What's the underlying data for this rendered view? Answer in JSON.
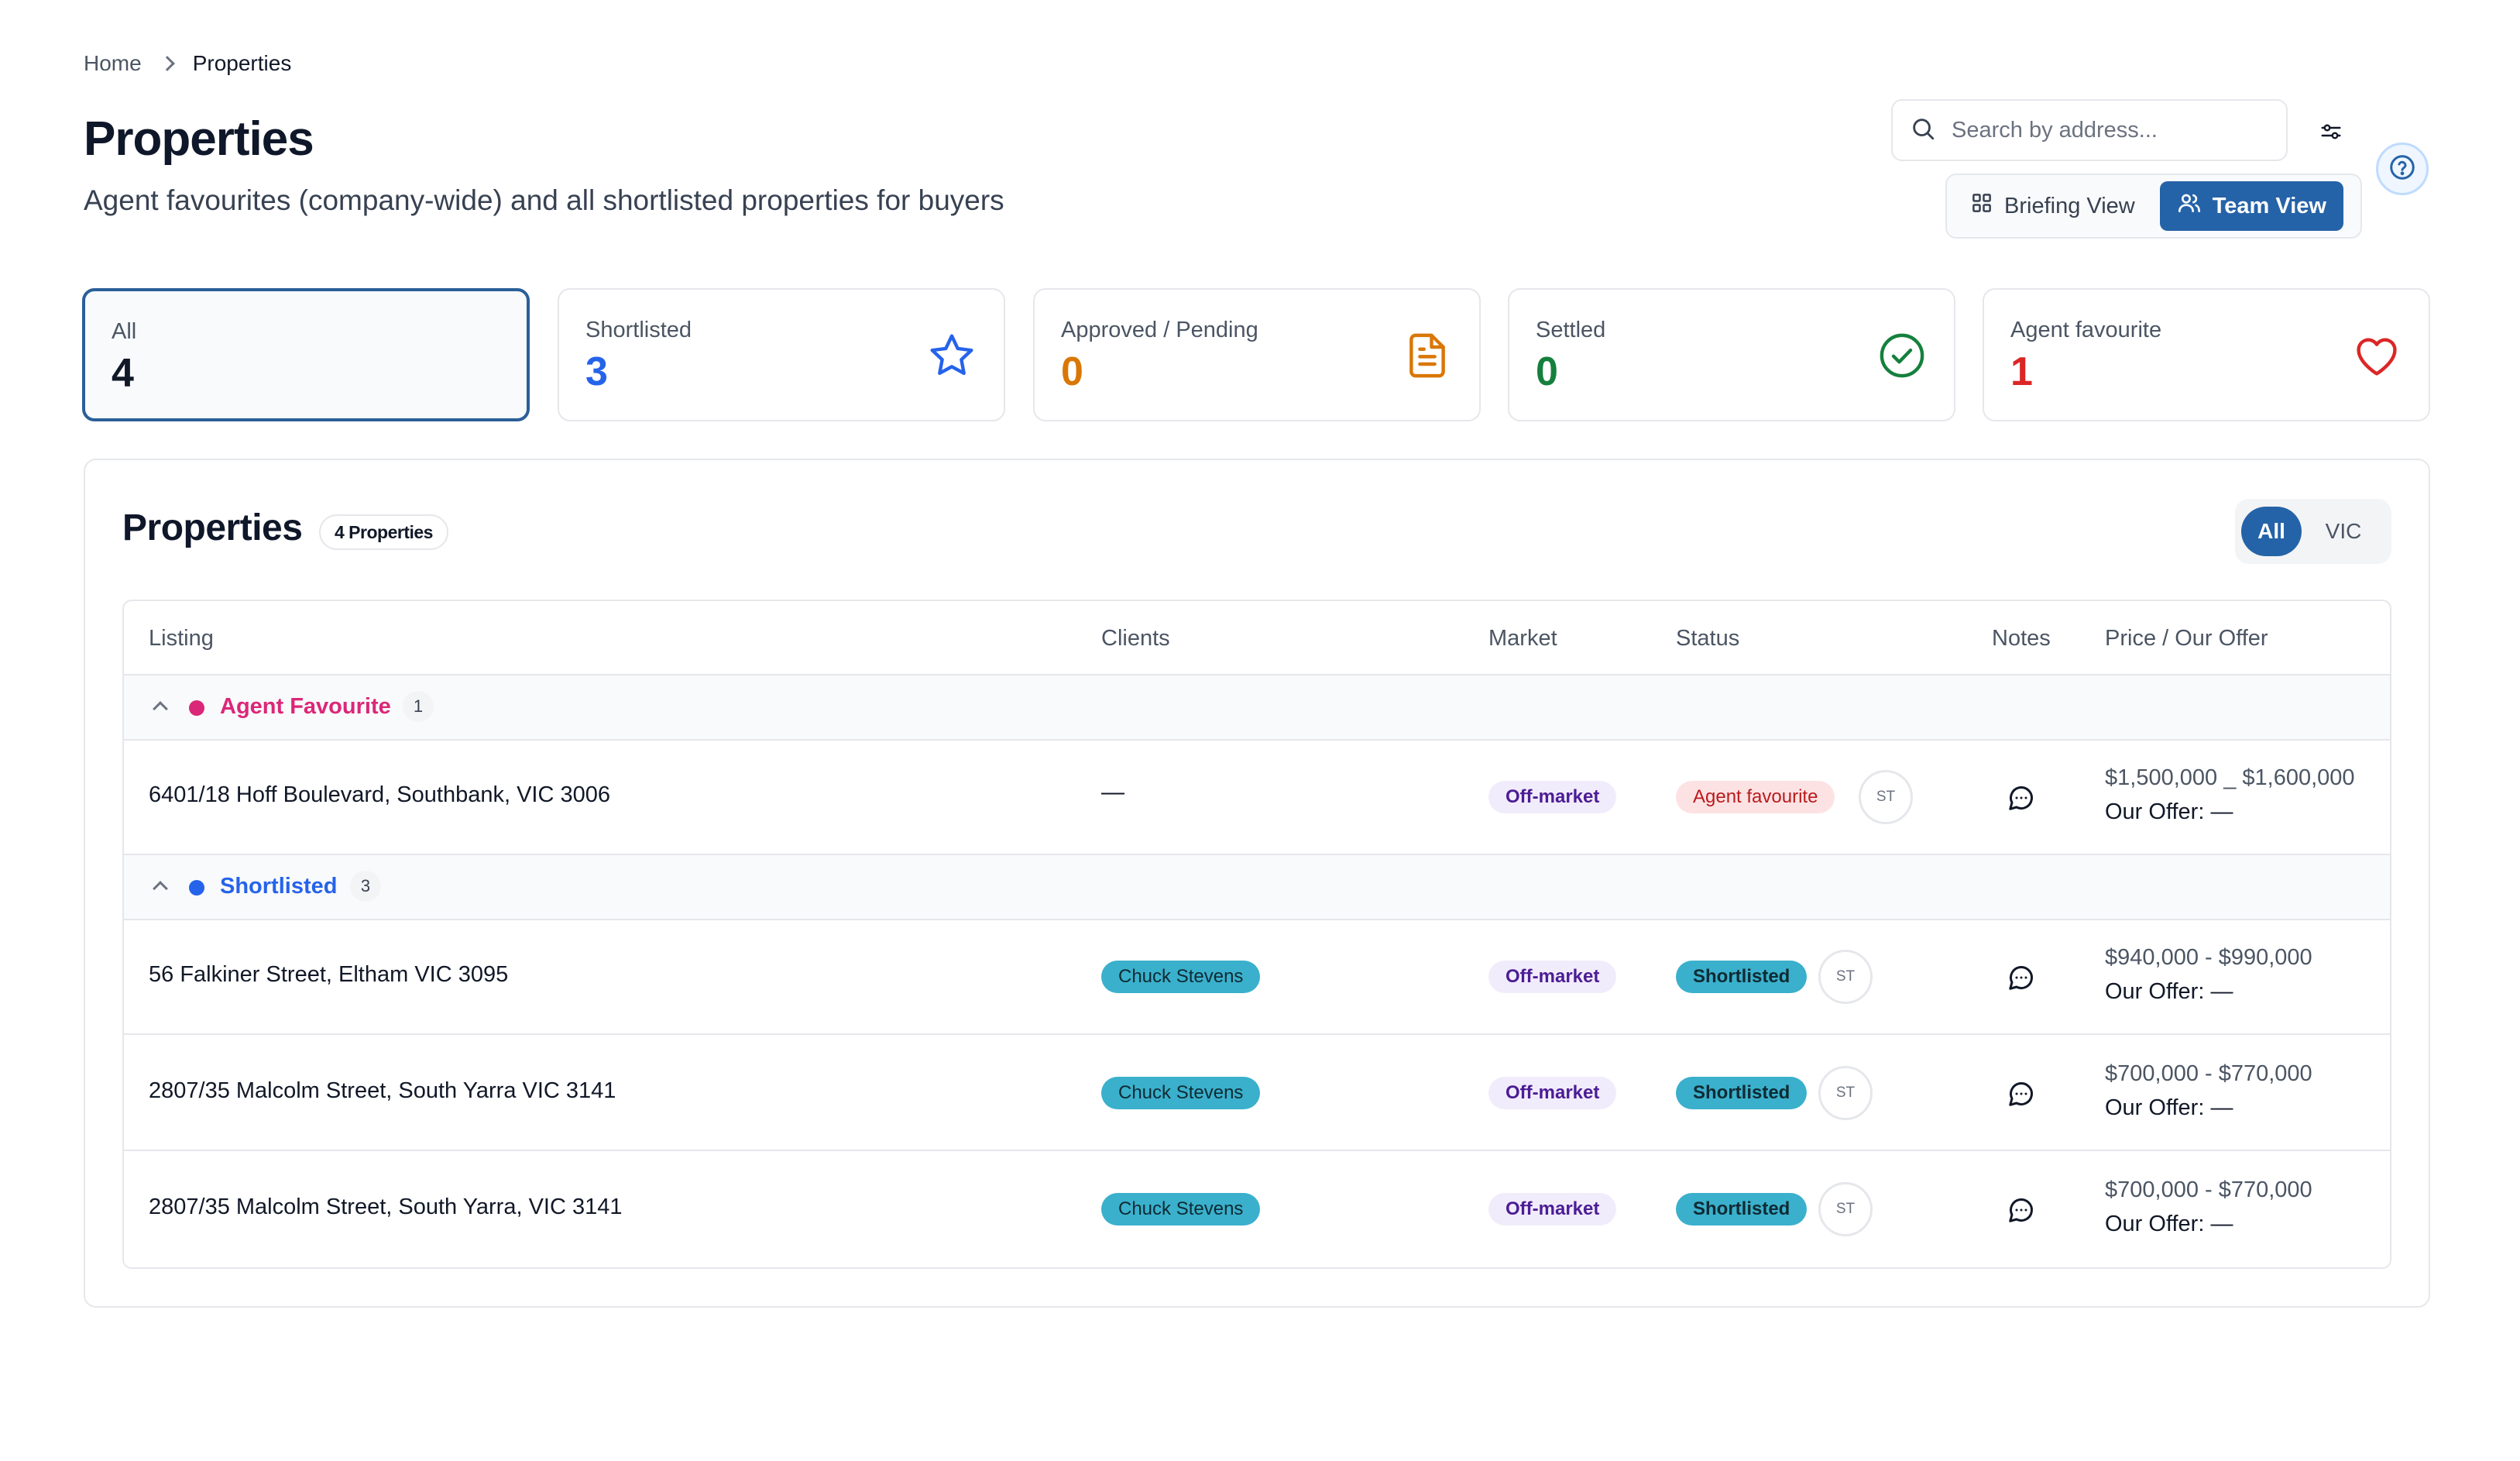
{
  "breadcrumb": {
    "home": "Home",
    "current": "Properties"
  },
  "header": {
    "title": "Properties",
    "subtitle": "Agent favourites (company-wide) and all shortlisted properties for buyers"
  },
  "search": {
    "placeholder": "Search by address...",
    "value": ""
  },
  "view_toggle": {
    "briefing": "Briefing View",
    "team": "Team View",
    "active": "team"
  },
  "stats": [
    {
      "label": "All",
      "value": "4",
      "color": "#111827",
      "icon": "none",
      "selected": true
    },
    {
      "label": "Shortlisted",
      "value": "3",
      "color": "#2563eb",
      "icon": "star-icon"
    },
    {
      "label": "Approved / Pending",
      "value": "0",
      "color": "#d97706",
      "icon": "document-icon"
    },
    {
      "label": "Settled",
      "value": "0",
      "color": "#15803d",
      "icon": "check-circle-icon"
    },
    {
      "label": "Agent favourite",
      "value": "1",
      "color": "#dc2626",
      "icon": "heart-icon"
    }
  ],
  "panel": {
    "title": "Properties",
    "count_badge": "4 Properties",
    "region_filter": {
      "options": [
        "All",
        "VIC"
      ],
      "active": "All"
    }
  },
  "table": {
    "columns": [
      "Listing",
      "Clients",
      "Market",
      "Status",
      "Notes",
      "Price / Our Offer"
    ],
    "groups": [
      {
        "label": "Agent Favourite",
        "count": "1",
        "color": "#db2777",
        "rows": [
          {
            "listing": "6401/18 Hoff Boulevard, Southbank, VIC 3006",
            "client": "—",
            "market": "Off-market",
            "status": "Agent favourite",
            "initials": "ST",
            "price": "$1,500,000 _ $1,600,000",
            "offer": "Our Offer: —"
          }
        ]
      },
      {
        "label": "Shortlisted",
        "count": "3",
        "color": "#2563eb",
        "rows": [
          {
            "listing": "56 Falkiner Street, Eltham VIC 3095",
            "client": "Chuck Stevens",
            "market": "Off-market",
            "status": "Shortlisted",
            "initials": "ST",
            "price": "$940,000 - $990,000",
            "offer": "Our Offer: —"
          },
          {
            "listing": "2807/35 Malcolm Street, South Yarra VIC 3141",
            "client": "Chuck Stevens",
            "market": "Off-market",
            "status": "Shortlisted",
            "initials": "ST",
            "price": "$700,000 - $770,000",
            "offer": "Our Offer: —"
          },
          {
            "listing": "2807/35 Malcolm Street, South Yarra, VIC 3141",
            "client": "Chuck Stevens",
            "market": "Off-market",
            "status": "Shortlisted",
            "initials": "ST",
            "price": "$700,000 - $770,000",
            "offer": "Our Offer: —"
          }
        ]
      }
    ]
  }
}
